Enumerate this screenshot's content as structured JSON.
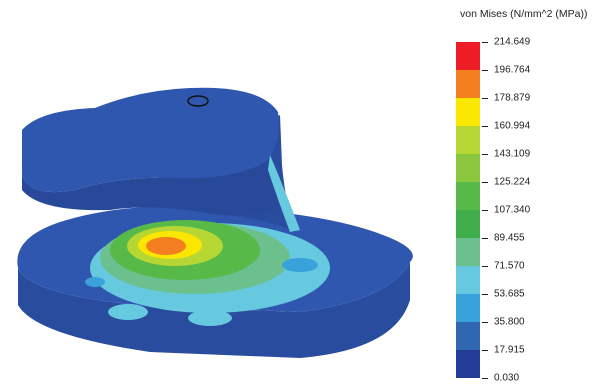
{
  "legend": {
    "title": "von Mises (N/mm^2 (MPa))",
    "values": [
      "214.649",
      "196.764",
      "178.879",
      "160.994",
      "143.109",
      "125.224",
      "107.340",
      "89.455",
      "71.570",
      "53.685",
      "35.800",
      "17.915",
      "0.030"
    ],
    "colors": [
      "#ee1c24",
      "#f47f20",
      "#fbe600",
      "#b6d634",
      "#8cc63f",
      "#57b947",
      "#3fae4a",
      "#6cc08e",
      "#66c9e0",
      "#3aa2db",
      "#2f67b1",
      "#233c97"
    ]
  },
  "model": {
    "body_color": "#2b4fa8",
    "hotspot_color": "#f47f20"
  }
}
